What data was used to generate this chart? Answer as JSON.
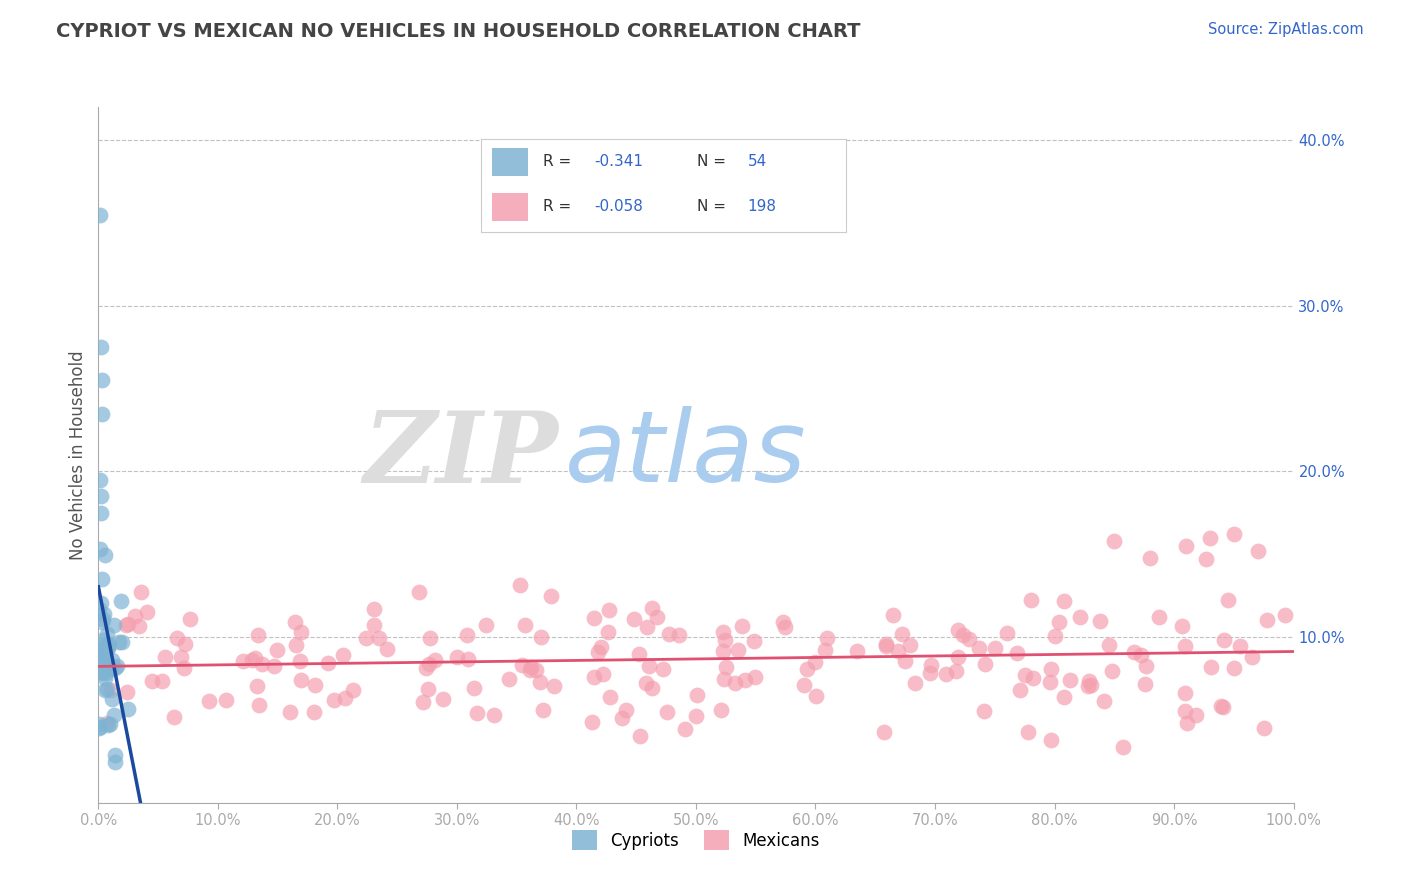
{
  "title": "CYPRIOT VS MEXICAN NO VEHICLES IN HOUSEHOLD CORRELATION CHART",
  "source_text": "Source: ZipAtlas.com",
  "ylabel": "No Vehicles in Household",
  "xlim": [
    0,
    1.0
  ],
  "ylim": [
    0,
    0.42
  ],
  "xticks": [
    0.0,
    0.1,
    0.2,
    0.3,
    0.4,
    0.5,
    0.6,
    0.7,
    0.8,
    0.9,
    1.0
  ],
  "yticks": [
    0.0,
    0.1,
    0.2,
    0.3,
    0.4
  ],
  "ytick_labels": [
    "",
    "10.0%",
    "20.0%",
    "30.0%",
    "40.0%"
  ],
  "xtick_labels": [
    "0.0%",
    "10.0%",
    "20.0%",
    "30.0%",
    "40.0%",
    "50.0%",
    "60.0%",
    "70.0%",
    "80.0%",
    "90.0%",
    "100.0%"
  ],
  "legend_names": [
    "Cypriots",
    "Mexicans"
  ],
  "cypriot_color": "#7fb3d3",
  "mexican_color": "#f4a0b0",
  "cypriot_line_color": "#1a4a9e",
  "mexican_line_color": "#e05070",
  "background_color": "#ffffff",
  "grid_color": "#bbbbbb",
  "title_color": "#444444",
  "watermark_ZIP_color": "#dddddd",
  "watermark_atlas_color": "#aaccee",
  "N_cypriot": 54,
  "N_mexican": 198,
  "R_cypriot": -0.341,
  "R_mexican": -0.058
}
